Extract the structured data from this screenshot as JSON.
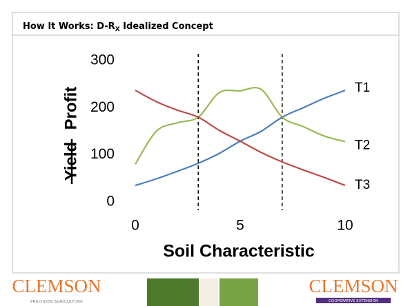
{
  "chart_data": {
    "type": "line",
    "title": "How It Works: D-R",
    "title_subscript": "X",
    "title_rest": " Idealized Concept",
    "y_label_struck": "Yield",
    "y_label": "Profit",
    "x_label": "Soil Characteristic",
    "x": [
      0,
      1,
      2,
      3,
      4,
      5,
      6,
      7,
      8,
      9,
      10
    ],
    "series": [
      {
        "name": "T1",
        "color": "#4a7ebb",
        "values": [
          35,
          49,
          65,
          82,
          103,
          129,
          150,
          180,
          200,
          220,
          237
        ]
      },
      {
        "name": "T2",
        "color": "#98b954",
        "values": [
          80,
          150,
          168,
          180,
          232,
          236,
          239,
          180,
          160,
          140,
          128
        ]
      },
      {
        "name": "T3",
        "color": "#be4b48",
        "values": [
          237,
          213,
          195,
          180,
          152,
          129,
          105,
          85,
          68,
          52,
          35
        ]
      }
    ],
    "vlines": [
      3,
      7
    ],
    "xlim": [
      0,
      10
    ],
    "xticks": [
      0,
      5,
      10
    ],
    "ylim": [
      0,
      300
    ],
    "yticks": [
      0,
      100,
      200,
      300
    ],
    "grid": false
  },
  "footer": {
    "left_logo": "CLEMSON",
    "left_tagline": "PRECISION AGRICULTURE",
    "right_logo": "CLEMSON",
    "right_tagline": "COOPERATIVE EXTENSION"
  }
}
